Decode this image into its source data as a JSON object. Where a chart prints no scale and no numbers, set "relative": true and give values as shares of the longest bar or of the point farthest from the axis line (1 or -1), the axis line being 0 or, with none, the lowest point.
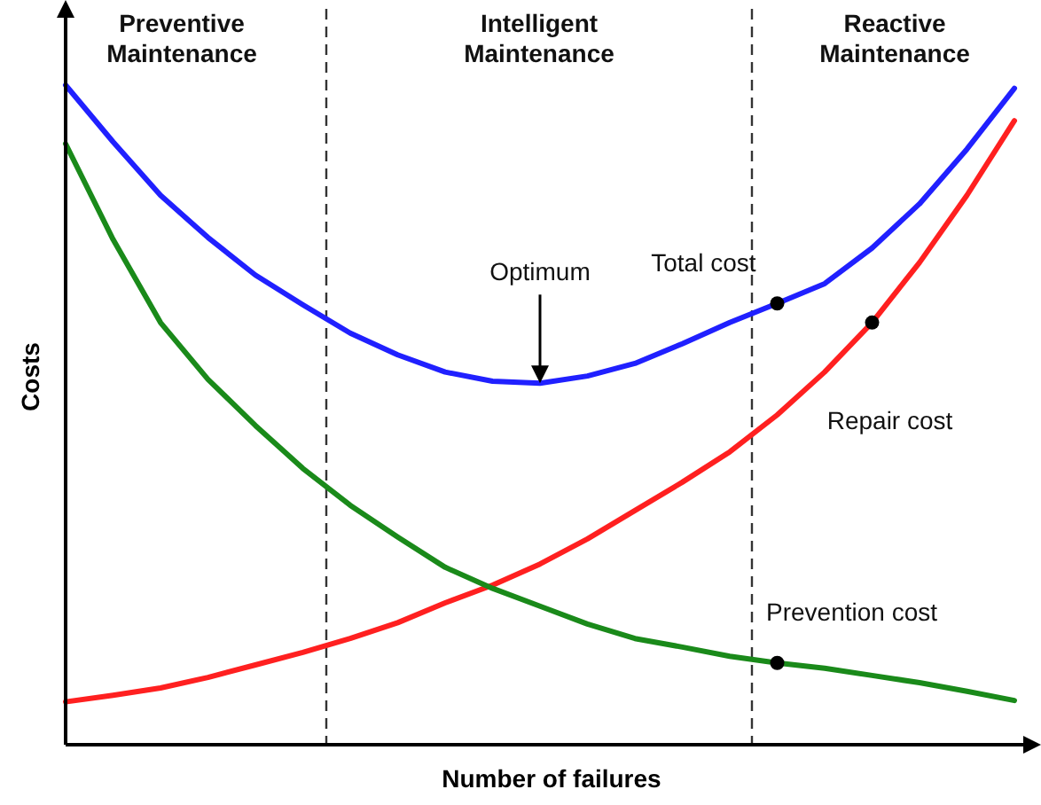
{
  "chart_data": {
    "type": "line",
    "relative": true,
    "xlabel": "Number of failures",
    "ylabel": "Costs",
    "categories": [
      null,
      null,
      null,
      null,
      null,
      null,
      null,
      null,
      null,
      null,
      null,
      null,
      null,
      null,
      null,
      null,
      null,
      null,
      null,
      null,
      null
    ],
    "marker": "none",
    "line_style": "solid",
    "series": [
      {
        "color": "#2020ff",
        "values": [
          1,
          0.914,
          0.833,
          0.769,
          0.712,
          0.667,
          0.624,
          0.591,
          0.565,
          0.551,
          0.548,
          0.559,
          0.578,
          0.608,
          0.64,
          0.669,
          0.699,
          0.753,
          0.82,
          0.903,
          0.995
        ]
      },
      {
        "color": "#ff2020",
        "values": [
          0.065,
          0.075,
          0.086,
          0.102,
          0.121,
          0.14,
          0.161,
          0.185,
          0.215,
          0.242,
          0.274,
          0.312,
          0.355,
          0.398,
          0.444,
          0.5,
          0.565,
          0.64,
          0.731,
          0.833,
          0.946
        ]
      },
      {
        "color": "#1a8a1a",
        "values": [
          0.911,
          0.766,
          0.64,
          0.554,
          0.484,
          0.419,
          0.363,
          0.315,
          0.269,
          0.237,
          0.21,
          0.183,
          0.161,
          0.148,
          0.134,
          0.124,
          0.116,
          0.105,
          0.094,
          0.081,
          0.067
        ]
      }
    ],
    "annotations": [
      "Preventive Maintenance",
      "Intelligent Maintenance",
      "Reactive Maintenance",
      "Total cost",
      "Repair cost",
      "Prevention cost",
      "Optimum"
    ]
  }
}
